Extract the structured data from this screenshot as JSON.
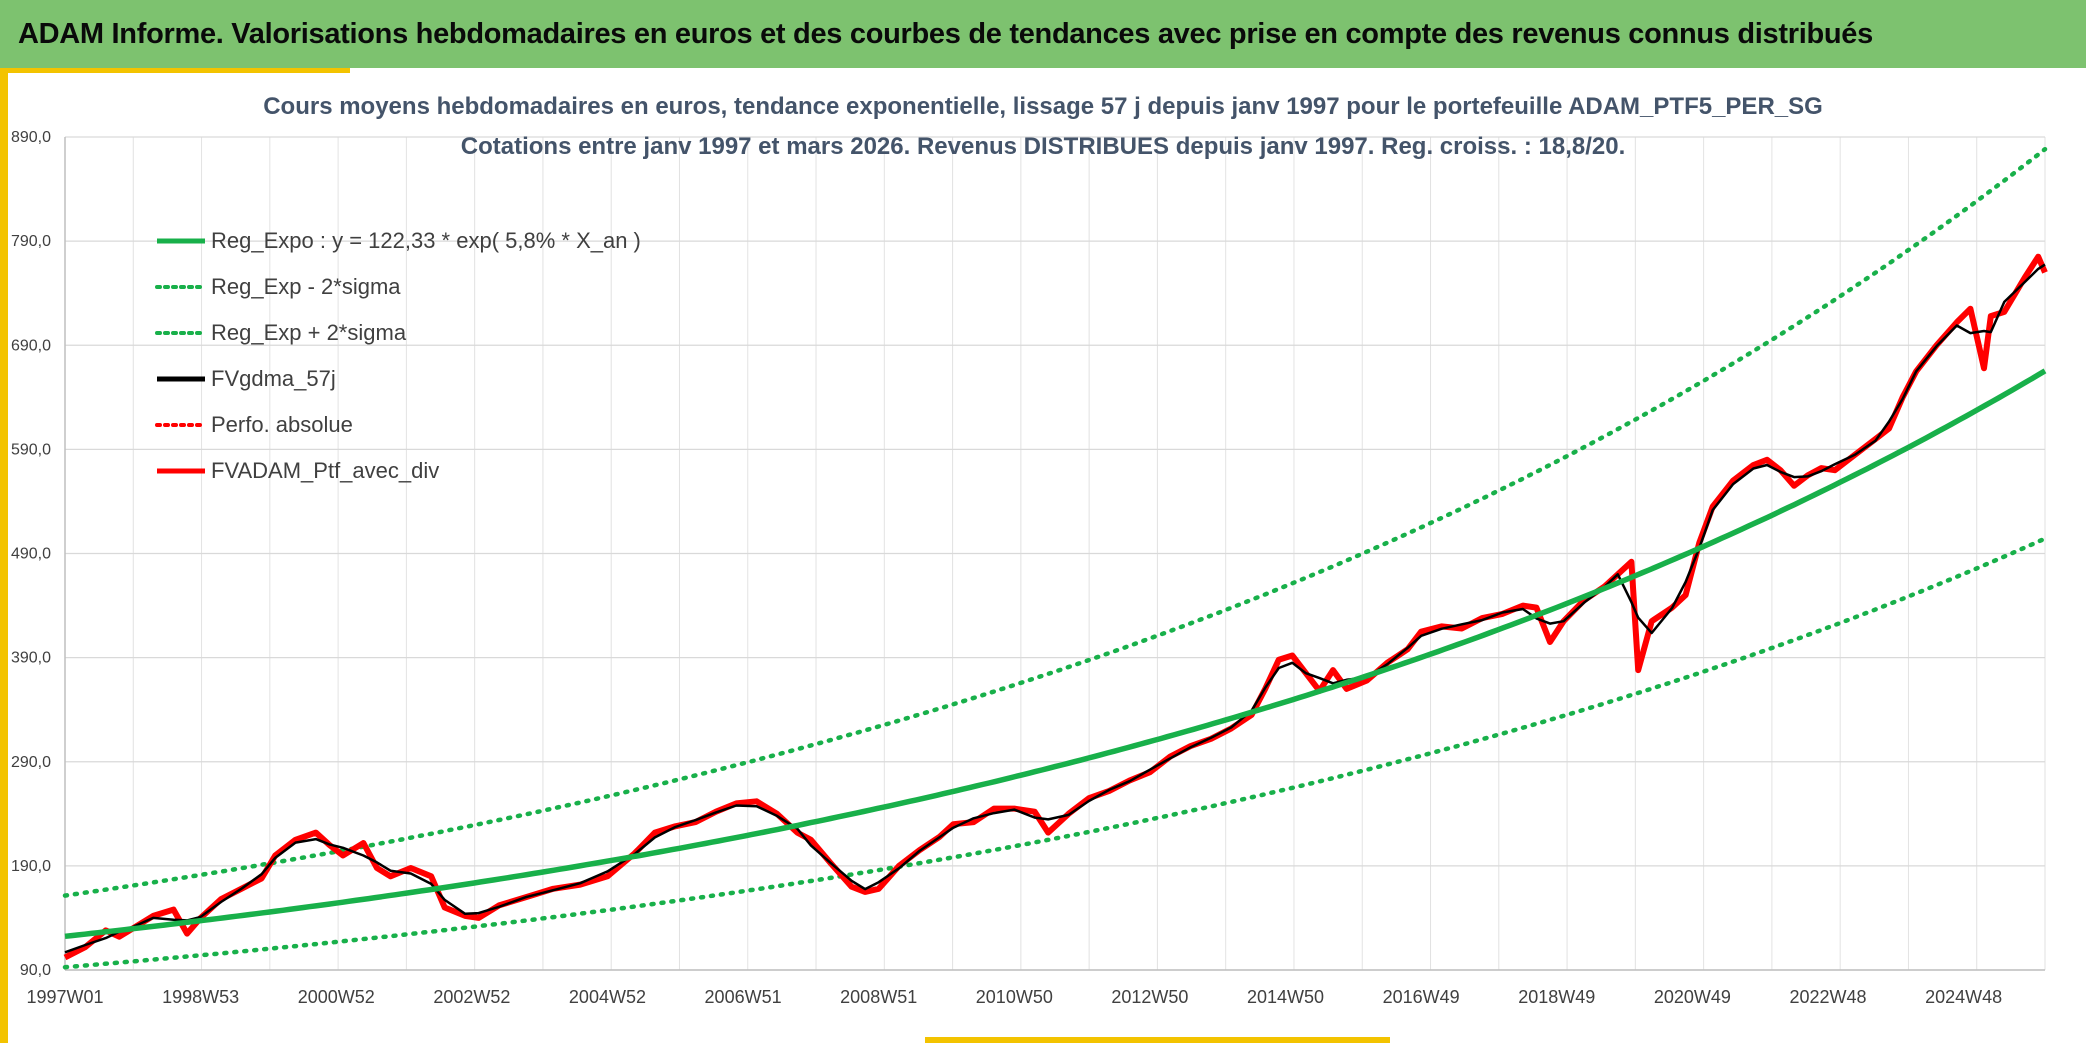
{
  "header": {
    "title": "ADAM Informe. Valorisations hebdomadaires en euros et des courbes de tendances avec prise en compte des revenus connus distribués"
  },
  "colors": {
    "banner": "#7dc26f",
    "accent": "#f3c300",
    "reg_green": "#18b04a",
    "red": "#ff0000",
    "black": "#000000",
    "title_text": "#44546a",
    "grid": "#d9d9d9"
  },
  "chart_data": {
    "type": "line",
    "title_line1": "Cours moyens hebdomadaires en euros, tendance exponentielle, lissage 57 j depuis janv 1997 pour le portefeuille ADAM_PTF5_PER_SG",
    "title_line2": "Cotations entre janv 1997 et mars 2026. Revenus DISTRIBUES depuis janv 1997. Reg. croiss. : 18,8/20.",
    "y_range": [
      90,
      890
    ],
    "y_ticks": [
      "890,0",
      "790,0",
      "690,0",
      "590,0",
      "490,0",
      "390,0",
      "290,0",
      "190,0",
      "90,0"
    ],
    "x_range": [
      1997.0,
      2026.2
    ],
    "x_tick_labels": [
      "1997W01",
      "1998W53",
      "2000W52",
      "2002W52",
      "2004W52",
      "2006W51",
      "2008W51",
      "2010W50",
      "2012W50",
      "2014W50",
      "2016W49",
      "2018W49",
      "2020W49",
      "2022W48",
      "2024W48"
    ],
    "x_tick_years": [
      1997.0,
      1999.0,
      2001.0,
      2003.0,
      2005.0,
      2007.0,
      2009.0,
      2011.0,
      2013.0,
      2015.0,
      2017.0,
      2019.0,
      2021.0,
      2023.0,
      2025.0
    ],
    "regression": {
      "base": 122.33,
      "rate": 0.058,
      "sigma_mult_low": 0.758,
      "sigma_mult_high": 1.32
    },
    "legend": [
      {
        "label": "Reg_Expo : y = 122,33 * exp( 5,8% *  X_an )",
        "style": "solid",
        "color": "#18b04a"
      },
      {
        "label": "Reg_Exp - 2*sigma",
        "style": "dotted",
        "color": "#18b04a"
      },
      {
        "label": "Reg_Exp + 2*sigma",
        "style": "dotted",
        "color": "#18b04a"
      },
      {
        "label": "FVgdma_57j",
        "style": "solid",
        "color": "#000000"
      },
      {
        "label": "Perfo. absolue",
        "style": "dotted",
        "color": "#ff0000"
      },
      {
        "label": "FVADAM_Ptf_avec_div",
        "style": "solid",
        "color": "#ff0000"
      }
    ],
    "series_points": [
      [
        1997.0,
        102
      ],
      [
        1997.3,
        112
      ],
      [
        1997.6,
        128
      ],
      [
        1997.8,
        122
      ],
      [
        1998.0,
        130
      ],
      [
        1998.3,
        142
      ],
      [
        1998.6,
        148
      ],
      [
        1998.8,
        125
      ],
      [
        1999.0,
        140
      ],
      [
        1999.3,
        158
      ],
      [
        1999.6,
        168
      ],
      [
        1999.9,
        178
      ],
      [
        2000.1,
        200
      ],
      [
        2000.4,
        215
      ],
      [
        2000.7,
        222
      ],
      [
        2000.9,
        210
      ],
      [
        2001.1,
        200
      ],
      [
        2001.4,
        212
      ],
      [
        2001.6,
        188
      ],
      [
        2001.8,
        180
      ],
      [
        2002.1,
        188
      ],
      [
        2002.4,
        180
      ],
      [
        2002.6,
        150
      ],
      [
        2002.9,
        142
      ],
      [
        2003.1,
        140
      ],
      [
        2003.4,
        152
      ],
      [
        2003.8,
        160
      ],
      [
        2004.2,
        168
      ],
      [
        2004.6,
        172
      ],
      [
        2005.0,
        180
      ],
      [
        2005.4,
        202
      ],
      [
        2005.7,
        222
      ],
      [
        2006.0,
        228
      ],
      [
        2006.3,
        232
      ],
      [
        2006.6,
        242
      ],
      [
        2006.9,
        250
      ],
      [
        2007.2,
        252
      ],
      [
        2007.5,
        240
      ],
      [
        2007.8,
        222
      ],
      [
        2008.0,
        215
      ],
      [
        2008.3,
        192
      ],
      [
        2008.6,
        170
      ],
      [
        2008.8,
        165
      ],
      [
        2009.0,
        168
      ],
      [
        2009.3,
        190
      ],
      [
        2009.6,
        205
      ],
      [
        2009.9,
        218
      ],
      [
        2010.1,
        230
      ],
      [
        2010.4,
        232
      ],
      [
        2010.7,
        245
      ],
      [
        2011.0,
        245
      ],
      [
        2011.3,
        242
      ],
      [
        2011.5,
        222
      ],
      [
        2011.8,
        240
      ],
      [
        2012.1,
        255
      ],
      [
        2012.4,
        262
      ],
      [
        2012.7,
        272
      ],
      [
        2013.0,
        280
      ],
      [
        2013.3,
        295
      ],
      [
        2013.6,
        305
      ],
      [
        2013.9,
        312
      ],
      [
        2014.2,
        322
      ],
      [
        2014.5,
        335
      ],
      [
        2014.7,
        360
      ],
      [
        2014.9,
        388
      ],
      [
        2015.1,
        392
      ],
      [
        2015.3,
        375
      ],
      [
        2015.5,
        358
      ],
      [
        2015.7,
        378
      ],
      [
        2015.9,
        360
      ],
      [
        2016.2,
        368
      ],
      [
        2016.5,
        385
      ],
      [
        2016.8,
        398
      ],
      [
        2017.0,
        415
      ],
      [
        2017.3,
        420
      ],
      [
        2017.6,
        418
      ],
      [
        2017.9,
        428
      ],
      [
        2018.2,
        432
      ],
      [
        2018.5,
        440
      ],
      [
        2018.7,
        438
      ],
      [
        2018.9,
        405
      ],
      [
        2019.1,
        425
      ],
      [
        2019.4,
        445
      ],
      [
        2019.7,
        458
      ],
      [
        2019.9,
        470
      ],
      [
        2020.1,
        482
      ],
      [
        2020.2,
        378
      ],
      [
        2020.4,
        425
      ],
      [
        2020.7,
        438
      ],
      [
        2020.9,
        450
      ],
      [
        2021.1,
        500
      ],
      [
        2021.3,
        535
      ],
      [
        2021.6,
        560
      ],
      [
        2021.9,
        575
      ],
      [
        2022.1,
        580
      ],
      [
        2022.3,
        570
      ],
      [
        2022.5,
        555
      ],
      [
        2022.7,
        565
      ],
      [
        2022.9,
        572
      ],
      [
        2023.1,
        570
      ],
      [
        2023.4,
        585
      ],
      [
        2023.7,
        600
      ],
      [
        2023.9,
        610
      ],
      [
        2024.1,
        640
      ],
      [
        2024.3,
        665
      ],
      [
        2024.6,
        690
      ],
      [
        2024.9,
        712
      ],
      [
        2025.1,
        725
      ],
      [
        2025.3,
        668
      ],
      [
        2025.4,
        718
      ],
      [
        2025.6,
        722
      ],
      [
        2025.9,
        755
      ],
      [
        2026.1,
        775
      ],
      [
        2026.2,
        760
      ]
    ]
  }
}
